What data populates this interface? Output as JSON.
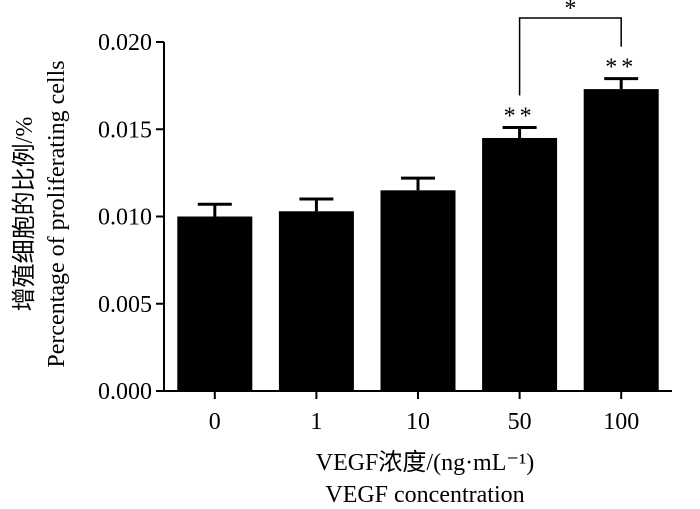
{
  "chart_data": {
    "type": "bar",
    "categories": [
      "0",
      "1",
      "10",
      "50",
      "100"
    ],
    "values": [
      0.01,
      0.0103,
      0.0115,
      0.0145,
      0.0173
    ],
    "errors": [
      0.0007,
      0.0007,
      0.0007,
      0.0006,
      0.0006
    ],
    "ylim": [
      0,
      0.02
    ],
    "yticks": [
      0.0,
      0.005,
      0.01,
      0.015,
      0.02
    ],
    "ytick_labels": [
      "0.000",
      "0.005",
      "0.010",
      "0.015",
      "0.020"
    ],
    "xlabel_cn": "VEGF浓度/(ng·mL⁻¹)",
    "xlabel_en": "VEGF concentration",
    "ylabel_cn": "增殖细胞的比例/%",
    "ylabel_en": "Percentage of proliferating cells",
    "significance": [
      {
        "category": "50",
        "label": "**"
      },
      {
        "category": "100",
        "label": "**"
      }
    ],
    "bracket": {
      "from": "50",
      "to": "100",
      "label": "*"
    },
    "bar_color": "#000000"
  }
}
